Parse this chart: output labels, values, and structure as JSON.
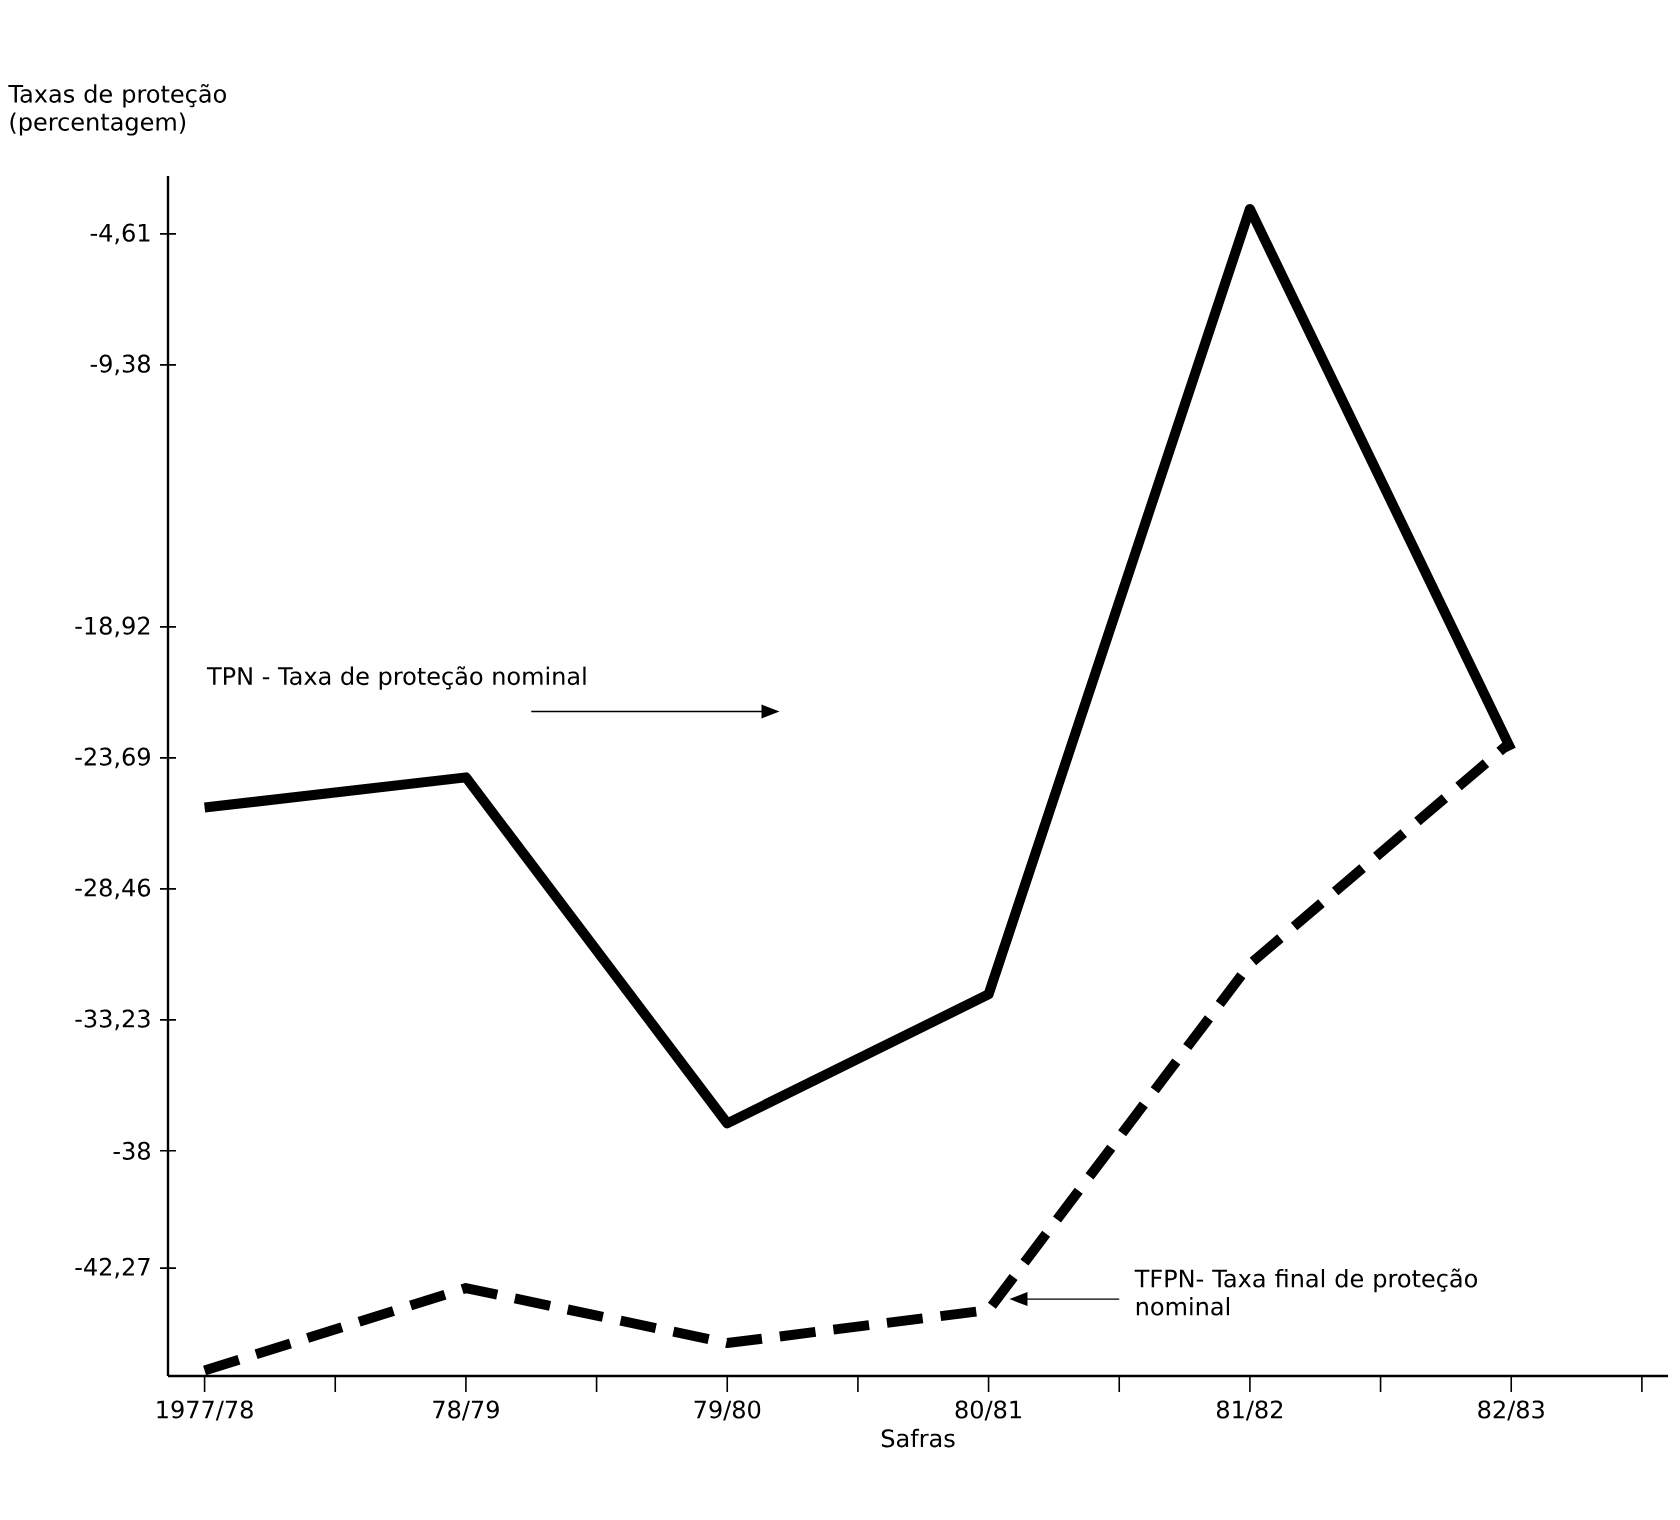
{
  "chart_data": {
    "type": "line",
    "xlabel": "Safras",
    "ylabel": "Taxas de proteção (percentagem)",
    "categories": [
      "1977/78",
      "78/79",
      "79/80",
      "80/81",
      "81/82",
      "82/83"
    ],
    "series": [
      {
        "color": "#000000",
        "line_style": "solid",
        "values": [
          -25.5,
          -24.4,
          -37.0,
          -32.3,
          -3.7,
          -23.4
        ]
      },
      {
        "color": "#000000",
        "line_style": "dashed",
        "values": [
          -46.0,
          -43.0,
          -45.0,
          -43.8,
          -31.2,
          -23.1
        ]
      }
    ],
    "ylim": [
      -46.2,
      -2.5
    ],
    "yticks": [
      {
        "value": -4.61,
        "label": "-4,61"
      },
      {
        "value": -9.38,
        "label": "-9,38"
      },
      {
        "value": -18.92,
        "label": "-18,92"
      },
      {
        "value": -23.69,
        "label": "-23,69"
      },
      {
        "value": -28.46,
        "label": "-28,46"
      },
      {
        "value": -33.23,
        "label": "-33,23"
      },
      -38,
      {
        "value": -42.27,
        "label": "-42,27"
      }
    ],
    "annotations": [
      "TPN - Taxa de proteção nominal",
      "TFPN- Taxa final de proteção nominal"
    ],
    "grid": false
  }
}
